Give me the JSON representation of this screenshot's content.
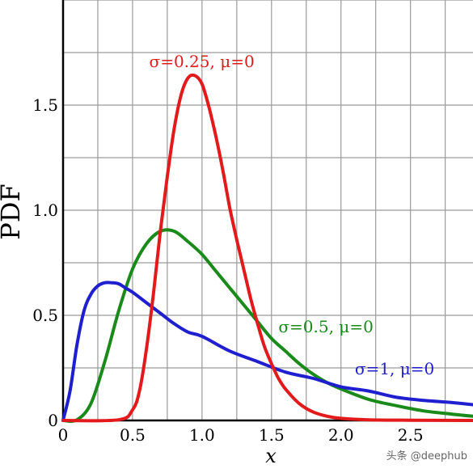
{
  "chart_data": {
    "type": "line",
    "xlabel": "x",
    "ylabel": "PDF",
    "xlim": [
      0,
      2.95
    ],
    "ylim": [
      0,
      2.0
    ],
    "xticks": [
      0,
      0.5,
      1.0,
      1.5,
      2.0,
      2.5
    ],
    "xtick_labels": [
      "0",
      "0.5",
      "1.0",
      "1.5",
      "2.0",
      "2.5"
    ],
    "yticks": [
      0,
      0.5,
      1.0,
      1.5
    ],
    "ytick_labels": [
      "0",
      "0.5",
      "1.0",
      "1.5"
    ],
    "grid": true,
    "series": [
      {
        "name": "σ=0.25, μ=0",
        "color": "#e31a1c",
        "x": [
          0,
          0.4,
          0.5,
          0.55,
          0.6,
          0.65,
          0.7,
          0.75,
          0.8,
          0.85,
          0.9,
          0.95,
          1.0,
          1.05,
          1.1,
          1.15,
          1.2,
          1.25,
          1.3,
          1.35,
          1.4,
          1.45,
          1.5,
          1.55,
          1.6,
          1.7,
          1.8,
          1.9,
          2.0,
          2.2,
          2.5,
          2.95
        ],
        "y": [
          0,
          0.003,
          0.05,
          0.14,
          0.34,
          0.6,
          0.9,
          1.16,
          1.39,
          1.55,
          1.63,
          1.64,
          1.6,
          1.49,
          1.35,
          1.19,
          1.01,
          0.86,
          0.72,
          0.58,
          0.46,
          0.35,
          0.27,
          0.2,
          0.15,
          0.08,
          0.04,
          0.02,
          0.01,
          0.003,
          0.001,
          0
        ]
      },
      {
        "name": "σ=0.5, μ=0",
        "color": "#1a8a1a",
        "x": [
          0,
          0.1,
          0.2,
          0.3,
          0.4,
          0.5,
          0.6,
          0.7,
          0.8,
          0.9,
          1.0,
          1.1,
          1.2,
          1.3,
          1.4,
          1.5,
          1.6,
          1.7,
          1.8,
          1.9,
          2.0,
          2.2,
          2.4,
          2.6,
          2.8,
          2.95
        ],
        "y": [
          0,
          0.003,
          0.08,
          0.28,
          0.52,
          0.72,
          0.84,
          0.9,
          0.9,
          0.85,
          0.79,
          0.71,
          0.63,
          0.55,
          0.47,
          0.39,
          0.33,
          0.27,
          0.22,
          0.18,
          0.15,
          0.1,
          0.07,
          0.045,
          0.03,
          0.02
        ]
      },
      {
        "name": "σ=1, μ=0",
        "color": "#1f1fcf",
        "x": [
          0,
          0.05,
          0.1,
          0.15,
          0.2,
          0.25,
          0.3,
          0.35,
          0.4,
          0.45,
          0.5,
          0.6,
          0.7,
          0.8,
          0.9,
          1.0,
          1.2,
          1.4,
          1.6,
          1.8,
          2.0,
          2.2,
          2.4,
          2.6,
          2.8,
          2.95
        ],
        "y": [
          0,
          0.14,
          0.36,
          0.52,
          0.6,
          0.64,
          0.655,
          0.655,
          0.65,
          0.63,
          0.61,
          0.56,
          0.51,
          0.46,
          0.42,
          0.4,
          0.33,
          0.28,
          0.23,
          0.2,
          0.16,
          0.14,
          0.11,
          0.095,
          0.085,
          0.075
        ]
      }
    ],
    "annotations": [
      {
        "text": "σ=0.25, μ=0",
        "x": 0.62,
        "y": 1.68,
        "color": "#e31a1c"
      },
      {
        "text": "σ=0.5, μ=0",
        "x": 1.55,
        "y": 0.42,
        "color": "#1a8a1a"
      },
      {
        "text": "σ=1, μ=0",
        "x": 2.1,
        "y": 0.22,
        "color": "#1f1fcf"
      }
    ]
  },
  "watermark": "头条 @deephub"
}
